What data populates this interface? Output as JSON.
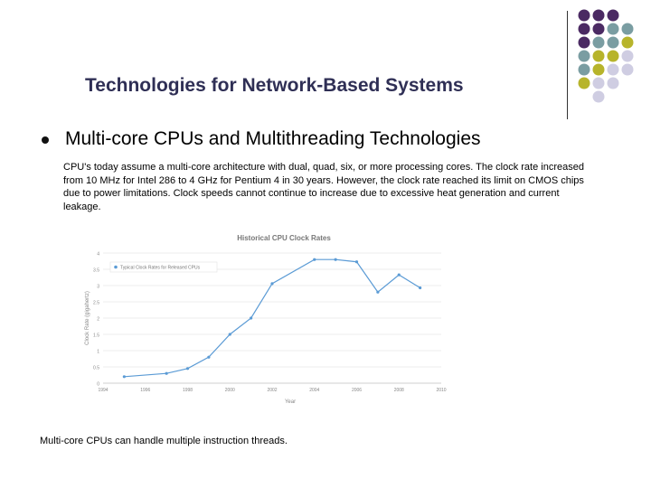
{
  "slide": {
    "title": "Technologies for Network-Based Systems",
    "heading": "Multi-core CPUs and Multithreading Technologies",
    "body": "CPU's today assume a multi-core architecture with dual, quad, six, or more processing cores. The clock rate increased from 10 MHz for Intel 286 to 4 GHz for Pentium 4 in 30 years. However, the clock rate reached its limit on CMOS chips due to power limitations. Clock speeds cannot continue to increase due to excessive heat generation and current leakage.",
    "footer": "Multi-core CPUs can handle multiple instruction threads."
  },
  "decoration": {
    "dot_colors": {
      "purple": "#4b2a63",
      "teal": "#7a9da2",
      "olive": "#b7b42b",
      "lavender": "#cfcde2"
    }
  },
  "chart_data": {
    "type": "line",
    "title": "Historical CPU Clock Rates",
    "xlabel": "Year",
    "ylabel": "Clock Rate (gigahertz)",
    "xlim": [
      1994,
      2010
    ],
    "ylim": [
      0,
      4
    ],
    "x_ticks": [
      1994,
      1996,
      1998,
      2000,
      2002,
      2004,
      2006,
      2008,
      2010
    ],
    "y_ticks": [
      0,
      0.5,
      1,
      1.5,
      2,
      2.5,
      3,
      3.5,
      4
    ],
    "legend_position": "top-left",
    "series": [
      {
        "name": "Typical Clock Rates for Released CPUs",
        "color": "#5b9bd5",
        "x": [
          1995,
          1997,
          1998,
          1999,
          2000,
          2001,
          2002,
          2004,
          2005,
          2006,
          2007,
          2008,
          2009
        ],
        "y": [
          0.2,
          0.3,
          0.45,
          0.8,
          1.5,
          2.0,
          3.06,
          3.8,
          3.8,
          3.73,
          2.8,
          3.33,
          2.93
        ]
      }
    ]
  }
}
